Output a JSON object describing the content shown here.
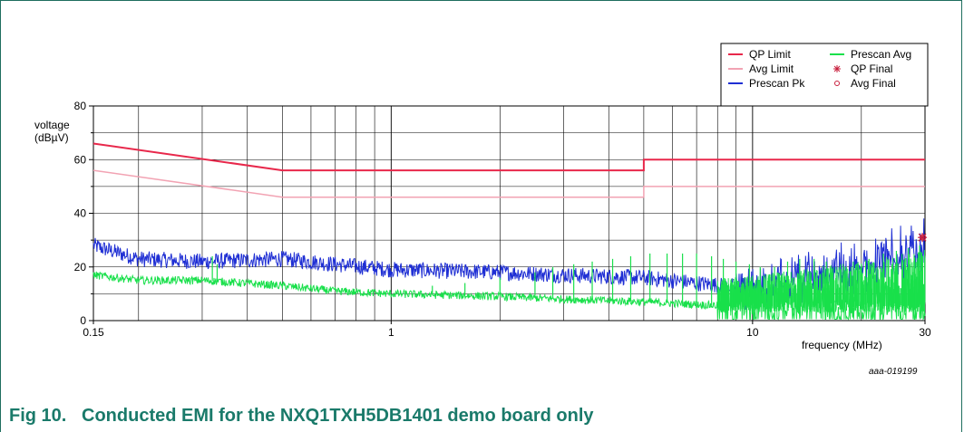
{
  "caption": "Fig 10.   Conducted EMI for the NXQ1TXH5DB1401 demo board only",
  "chart_data": {
    "type": "line",
    "x_scale": "log",
    "xlim": [
      0.15,
      30
    ],
    "ylim": [
      0,
      80
    ],
    "xlabel": "frequency (MHz)",
    "ylabel": [
      "voltage",
      "(dBµV)"
    ],
    "x_ticks": [
      0.15,
      1,
      10,
      30
    ],
    "x_tick_labels": [
      "0.15",
      "1",
      "10",
      "30"
    ],
    "y_ticks": [
      0,
      20,
      40,
      60,
      80
    ],
    "y_tick_labels": [
      "0",
      "20",
      "40",
      "60",
      "80"
    ],
    "grid": true,
    "legend_position": "top-right",
    "annotation": "aaa-019199",
    "legend": [
      {
        "label": "QP Limit",
        "color": "#e8284b",
        "marker": "line"
      },
      {
        "label": "Avg Limit",
        "color": "#f2a3b3",
        "marker": "line"
      },
      {
        "label": "Prescan Pk",
        "color": "#1f2fd4",
        "marker": "line"
      },
      {
        "label": "Prescan Avg",
        "color": "#19e04b",
        "marker": "line"
      },
      {
        "label": "QP Final",
        "color": "#c81e3c",
        "marker": "star"
      },
      {
        "label": "Avg Final",
        "color": "#c81e3c",
        "marker": "circle"
      }
    ],
    "series": [
      {
        "name": "QP Limit",
        "color": "#e8284b",
        "points": [
          [
            0.15,
            66
          ],
          [
            0.5,
            56
          ],
          [
            5,
            56
          ],
          [
            5,
            60
          ],
          [
            30,
            60
          ]
        ]
      },
      {
        "name": "Avg Limit",
        "color": "#f2a3b3",
        "points": [
          [
            0.15,
            56
          ],
          [
            0.5,
            46
          ],
          [
            5,
            46
          ],
          [
            5,
            50
          ],
          [
            30,
            50
          ]
        ]
      },
      {
        "name": "Prescan Pk",
        "color": "#1f2fd4",
        "envelope": [
          [
            0.15,
            28
          ],
          [
            0.2,
            23
          ],
          [
            0.3,
            22
          ],
          [
            0.5,
            23
          ],
          [
            0.7,
            21
          ],
          [
            1,
            19
          ],
          [
            2,
            18
          ],
          [
            3,
            17
          ],
          [
            5,
            16
          ],
          [
            7,
            14
          ],
          [
            10,
            12
          ],
          [
            13,
            16
          ],
          [
            18,
            18
          ],
          [
            25,
            23
          ],
          [
            30,
            27
          ]
        ],
        "noise": 3
      },
      {
        "name": "Prescan Avg",
        "color": "#19e04b",
        "envelope": [
          [
            0.15,
            17
          ],
          [
            0.2,
            15
          ],
          [
            0.3,
            15
          ],
          [
            0.5,
            13
          ],
          [
            0.7,
            11
          ],
          [
            1,
            10
          ],
          [
            2,
            9
          ],
          [
            3,
            8
          ],
          [
            5,
            7
          ],
          [
            7,
            6
          ],
          [
            10,
            5
          ],
          [
            15,
            5
          ],
          [
            20,
            5
          ],
          [
            30,
            6
          ]
        ],
        "noise": 1.5,
        "spikes": [
          [
            0.32,
            24
          ],
          [
            0.33,
            21
          ],
          [
            1.3,
            13
          ],
          [
            1.6,
            14
          ],
          [
            2.0,
            16
          ],
          [
            2.5,
            18
          ],
          [
            2.8,
            20
          ],
          [
            3.2,
            21
          ],
          [
            3.6,
            22
          ],
          [
            4.1,
            23
          ],
          [
            4.6,
            24
          ],
          [
            5.2,
            25
          ],
          [
            5.8,
            25
          ],
          [
            6.4,
            25
          ],
          [
            7.0,
            25
          ],
          [
            7.7,
            24
          ],
          [
            8.3,
            23
          ],
          [
            9.0,
            22
          ],
          [
            9.8,
            21
          ],
          [
            10.5,
            20
          ],
          [
            11.5,
            20
          ],
          [
            12.5,
            22
          ],
          [
            13.5,
            23
          ],
          [
            14.8,
            23
          ],
          [
            16,
            22
          ],
          [
            17.5,
            21
          ],
          [
            19,
            22
          ],
          [
            21,
            23
          ],
          [
            23,
            25
          ],
          [
            25,
            26
          ],
          [
            27,
            27
          ],
          [
            29,
            28
          ]
        ]
      },
      {
        "name": "QP Final",
        "color": "#c81e3c",
        "points": [
          [
            29.5,
            31
          ]
        ]
      },
      {
        "name": "Avg Final",
        "color": "#c81e3c",
        "points": [
          [
            29.6,
            31
          ]
        ]
      }
    ]
  }
}
